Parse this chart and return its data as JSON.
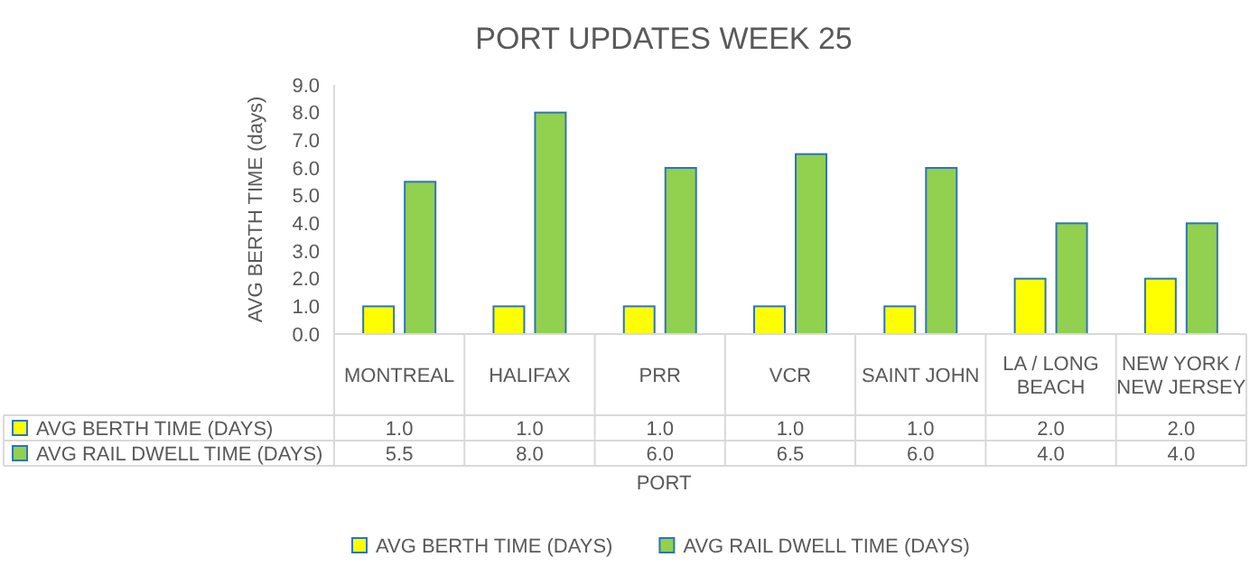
{
  "chart_data": {
    "type": "bar",
    "title": "PORT UPDATES WEEK 25",
    "xlabel": "PORT",
    "ylabel": "AVG BERTH TIME (days)",
    "categories": [
      "MONTREAL",
      "HALIFAX",
      "PRR",
      "VCR",
      "SAINT JOHN",
      "LA / LONG BEACH",
      "NEW YORK / NEW JERSEY"
    ],
    "series": [
      {
        "name": "AVG BERTH TIME (DAYS)",
        "color": "#ffff00",
        "values": [
          1.0,
          1.0,
          1.0,
          1.0,
          1.0,
          2.0,
          2.0
        ],
        "value_labels": [
          "1.0",
          "1.0",
          "1.0",
          "1.0",
          "1.0",
          "2.0",
          "2.0"
        ]
      },
      {
        "name": "AVG RAIL DWELL TIME (DAYS)",
        "color": "#92d050",
        "values": [
          5.5,
          8.0,
          6.0,
          6.5,
          6.0,
          4.0,
          4.0
        ],
        "value_labels": [
          "5.5",
          "8.0",
          "6.0",
          "6.5",
          "6.0",
          "4.0",
          "4.0"
        ]
      }
    ],
    "ylim": [
      0,
      9
    ],
    "yticks": [
      {
        "value": 0,
        "label": "0.0"
      },
      {
        "value": 1,
        "label": "1.0"
      },
      {
        "value": 2,
        "label": "2.0"
      },
      {
        "value": 3,
        "label": "3.0"
      },
      {
        "value": 4,
        "label": "4.0"
      },
      {
        "value": 5,
        "label": "5.0"
      },
      {
        "value": 6,
        "label": "6.0"
      },
      {
        "value": 7,
        "label": "7.0"
      },
      {
        "value": 8,
        "label": "8.0"
      },
      {
        "value": 9,
        "label": "9.0"
      }
    ],
    "grid": false,
    "legend": "bottom"
  }
}
